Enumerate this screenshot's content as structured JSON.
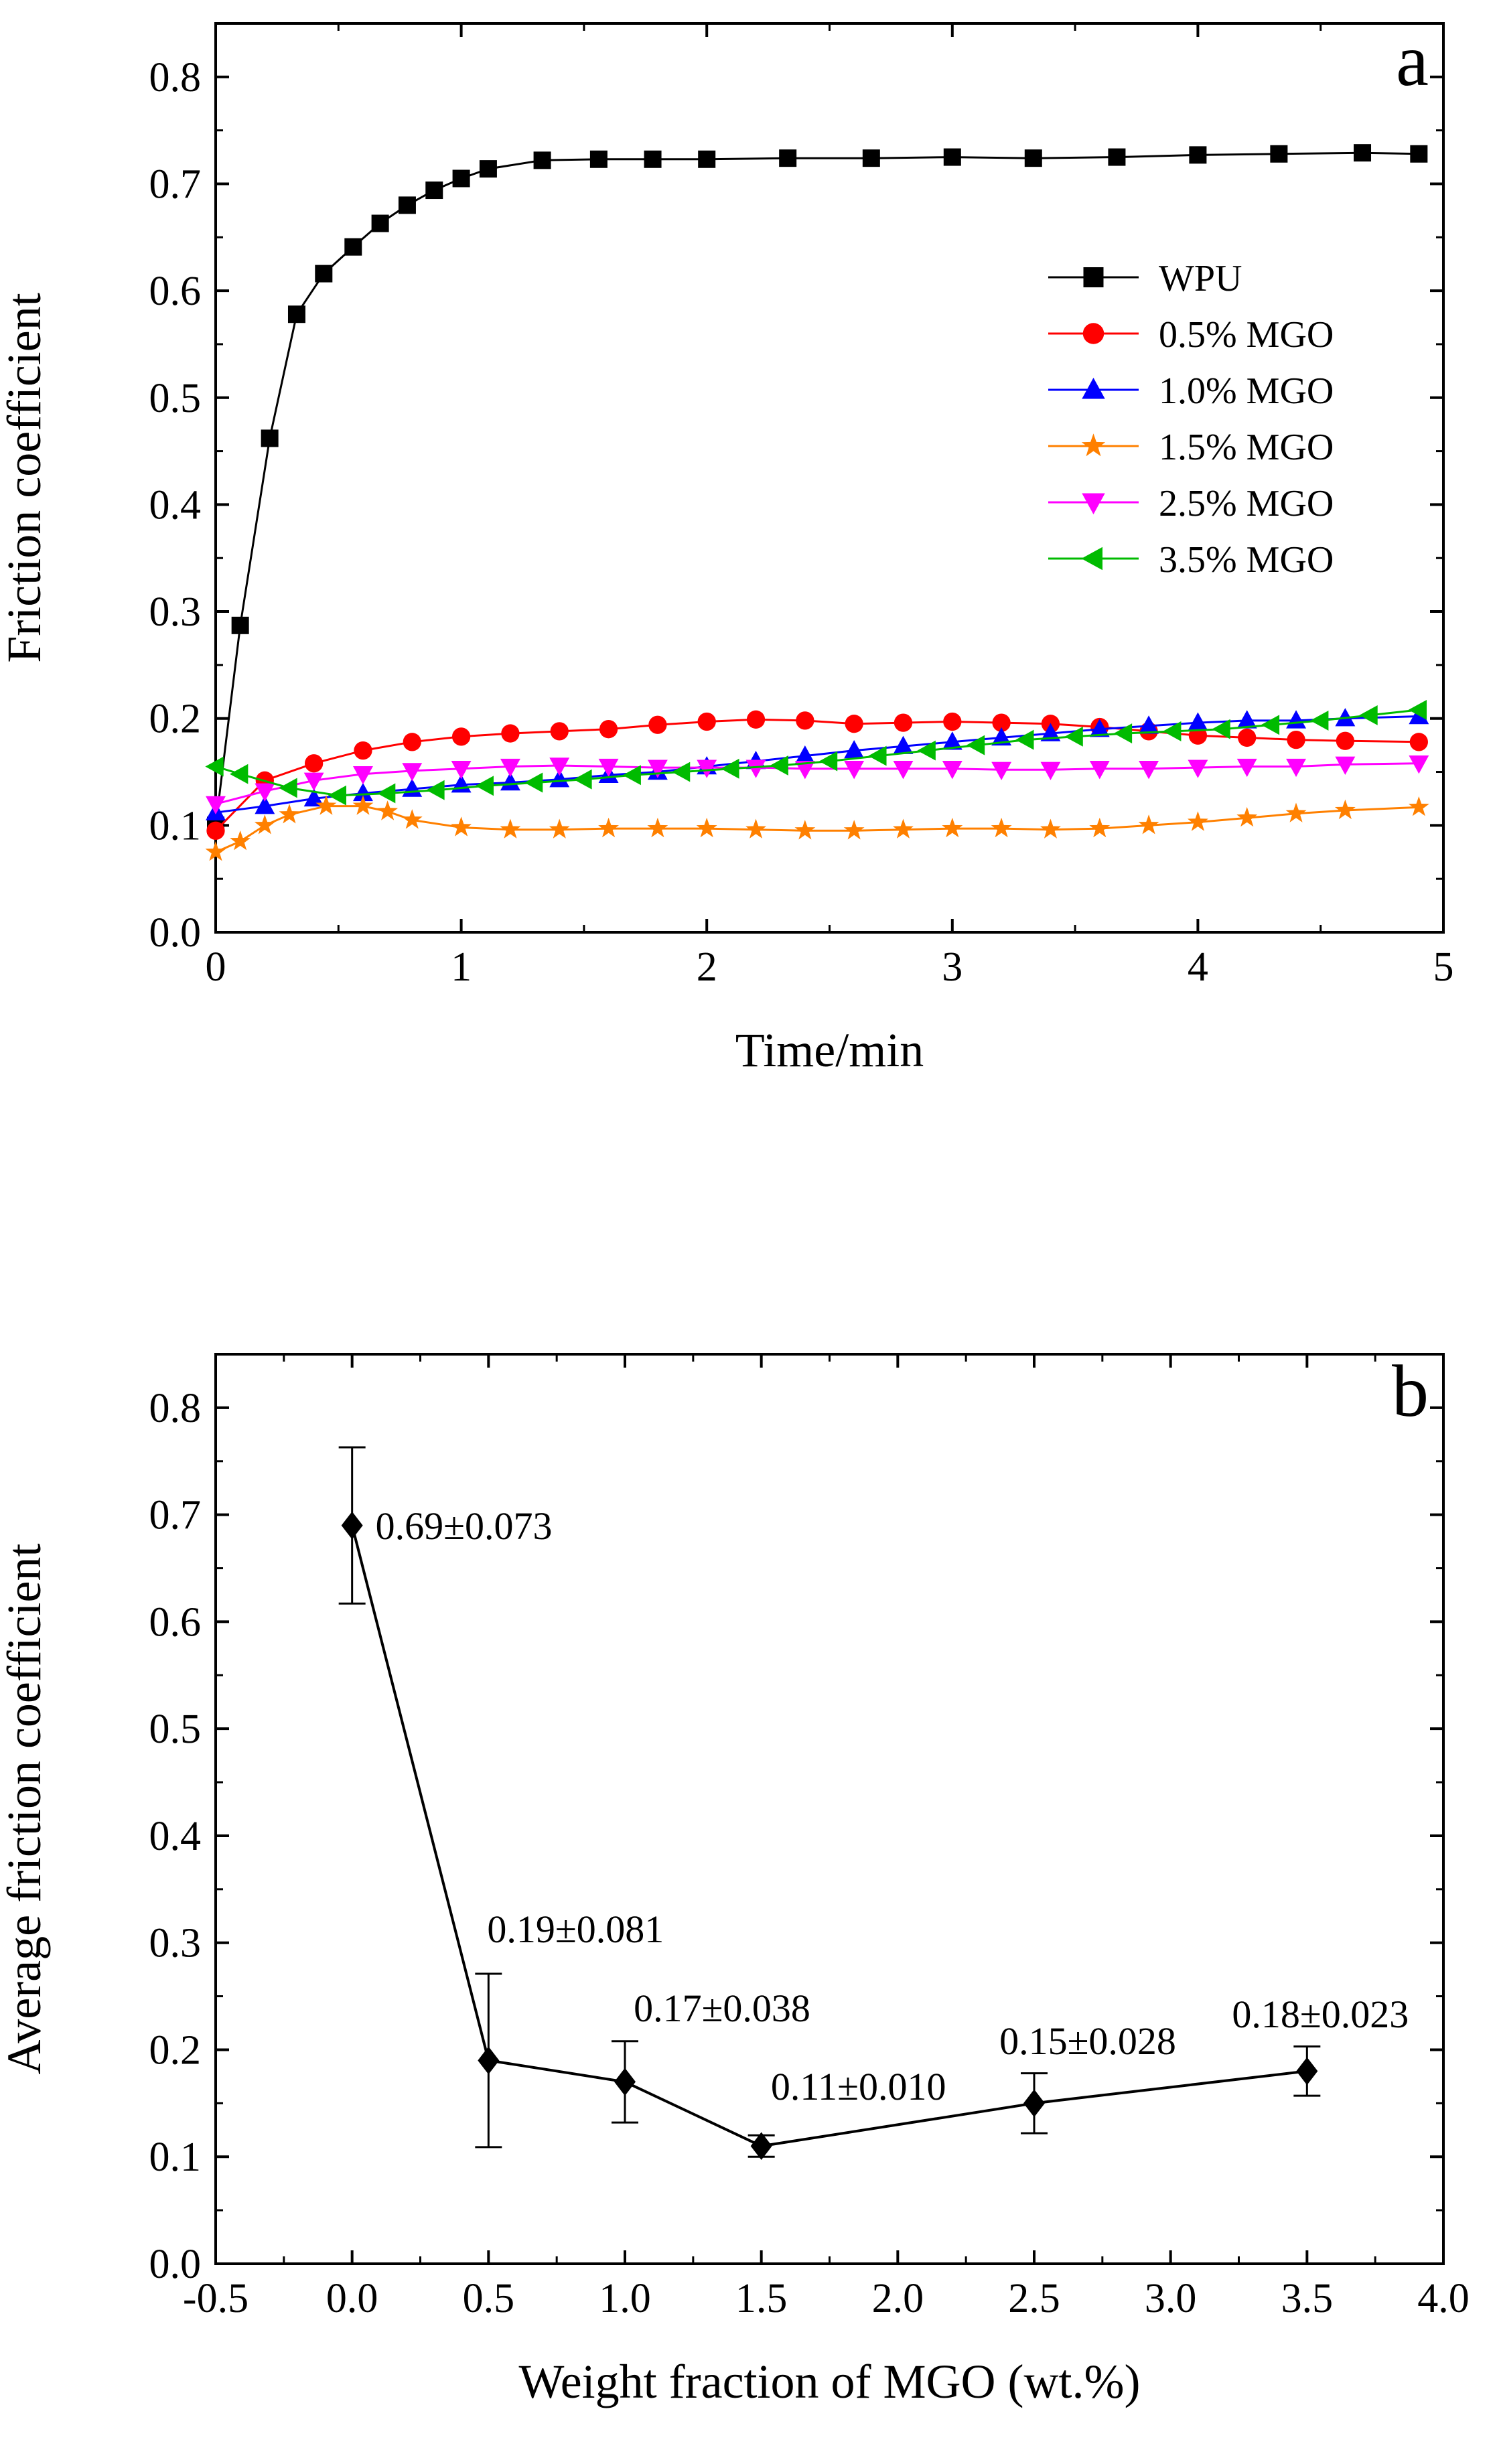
{
  "chart_data": [
    {
      "type": "line",
      "panel_label": "a",
      "xlabel": "Time/min",
      "ylabel": "Friction coefficient",
      "xlim": [
        0,
        5
      ],
      "ylim": [
        0,
        0.85
      ],
      "xticks": [
        "0",
        "1",
        "2",
        "3",
        "4",
        "5"
      ],
      "yticks": [
        "0.0",
        "0.1",
        "0.2",
        "0.3",
        "0.4",
        "0.5",
        "0.6",
        "0.7",
        "0.8"
      ],
      "legend_position": "middle-right",
      "series": [
        {
          "name": "WPU",
          "color": "#000000",
          "marker": "square",
          "x": [
            0,
            0.1,
            0.22,
            0.33,
            0.44,
            0.56,
            0.67,
            0.78,
            0.89,
            1.0,
            1.11,
            1.33,
            1.56,
            1.78,
            2.0,
            2.33,
            2.67,
            3.0,
            3.33,
            3.67,
            4.0,
            4.33,
            4.67,
            4.9
          ],
          "y": [
            0.1,
            0.287,
            0.462,
            0.578,
            0.616,
            0.641,
            0.663,
            0.68,
            0.694,
            0.705,
            0.714,
            0.722,
            0.723,
            0.723,
            0.723,
            0.724,
            0.724,
            0.725,
            0.724,
            0.725,
            0.727,
            0.728,
            0.729,
            0.728
          ]
        },
        {
          "name": "0.5% MGO",
          "color": "#ff0000",
          "marker": "circle",
          "x": [
            0,
            0.2,
            0.4,
            0.6,
            0.8,
            1.0,
            1.2,
            1.4,
            1.6,
            1.8,
            2.0,
            2.2,
            2.4,
            2.6,
            2.8,
            3.0,
            3.2,
            3.4,
            3.6,
            3.8,
            4.0,
            4.2,
            4.4,
            4.6,
            4.9
          ],
          "y": [
            0.095,
            0.142,
            0.158,
            0.17,
            0.178,
            0.183,
            0.186,
            0.188,
            0.19,
            0.194,
            0.197,
            0.199,
            0.198,
            0.195,
            0.196,
            0.197,
            0.196,
            0.195,
            0.192,
            0.188,
            0.184,
            0.182,
            0.18,
            0.179,
            0.178
          ]
        },
        {
          "name": "1.0% MGO",
          "color": "#0000ff",
          "marker": "triangle-up",
          "x": [
            0,
            0.2,
            0.4,
            0.6,
            0.8,
            1.0,
            1.2,
            1.4,
            1.6,
            1.8,
            2.0,
            2.2,
            2.4,
            2.6,
            2.8,
            3.0,
            3.2,
            3.4,
            3.6,
            3.8,
            4.0,
            4.2,
            4.4,
            4.6,
            4.9
          ],
          "y": [
            0.112,
            0.118,
            0.125,
            0.13,
            0.134,
            0.138,
            0.14,
            0.143,
            0.147,
            0.15,
            0.155,
            0.16,
            0.165,
            0.17,
            0.174,
            0.178,
            0.182,
            0.186,
            0.19,
            0.193,
            0.196,
            0.198,
            0.198,
            0.2,
            0.202
          ]
        },
        {
          "name": "1.5% MGO",
          "color": "#ff8000",
          "marker": "star",
          "x": [
            0,
            0.1,
            0.2,
            0.3,
            0.45,
            0.6,
            0.7,
            0.8,
            1.0,
            1.2,
            1.4,
            1.6,
            1.8,
            2.0,
            2.2,
            2.4,
            2.6,
            2.8,
            3.0,
            3.2,
            3.4,
            3.6,
            3.8,
            4.0,
            4.2,
            4.4,
            4.6,
            4.9
          ],
          "y": [
            0.075,
            0.085,
            0.1,
            0.11,
            0.118,
            0.118,
            0.113,
            0.105,
            0.098,
            0.096,
            0.096,
            0.097,
            0.097,
            0.097,
            0.096,
            0.095,
            0.095,
            0.096,
            0.097,
            0.097,
            0.096,
            0.097,
            0.1,
            0.103,
            0.107,
            0.111,
            0.114,
            0.117
          ]
        },
        {
          "name": "2.5% MGO",
          "color": "#ff00ff",
          "marker": "triangle-down",
          "x": [
            0,
            0.2,
            0.4,
            0.6,
            0.8,
            1.0,
            1.2,
            1.4,
            1.6,
            1.8,
            2.0,
            2.2,
            2.4,
            2.6,
            2.8,
            3.0,
            3.2,
            3.4,
            3.6,
            3.8,
            4.0,
            4.2,
            4.4,
            4.6,
            4.9
          ],
          "y": [
            0.12,
            0.132,
            0.142,
            0.148,
            0.151,
            0.153,
            0.155,
            0.156,
            0.155,
            0.154,
            0.154,
            0.154,
            0.153,
            0.153,
            0.153,
            0.153,
            0.152,
            0.152,
            0.153,
            0.153,
            0.154,
            0.155,
            0.155,
            0.157,
            0.158
          ]
        },
        {
          "name": "3.5% MGO",
          "color": "#00bb00",
          "marker": "triangle-left",
          "x": [
            0,
            0.1,
            0.3,
            0.5,
            0.7,
            0.9,
            1.1,
            1.3,
            1.5,
            1.7,
            1.9,
            2.1,
            2.3,
            2.5,
            2.7,
            2.9,
            3.1,
            3.3,
            3.5,
            3.7,
            3.9,
            4.1,
            4.3,
            4.5,
            4.7,
            4.9
          ],
          "y": [
            0.155,
            0.148,
            0.135,
            0.128,
            0.13,
            0.133,
            0.137,
            0.14,
            0.143,
            0.147,
            0.15,
            0.153,
            0.156,
            0.16,
            0.165,
            0.17,
            0.175,
            0.18,
            0.183,
            0.186,
            0.188,
            0.19,
            0.194,
            0.198,
            0.203,
            0.208
          ]
        }
      ]
    },
    {
      "type": "line",
      "panel_label": "b",
      "xlabel": "Weight fraction of MGO (wt.%)",
      "ylabel": "Average friction coefficient",
      "xlim": [
        -0.5,
        4.0
      ],
      "ylim": [
        0,
        0.85
      ],
      "xticks": [
        "-0.5",
        "0.0",
        "0.5",
        "1.0",
        "1.5",
        "2.0",
        "2.5",
        "3.0",
        "3.5",
        "4.0"
      ],
      "yticks": [
        "0.0",
        "0.1",
        "0.2",
        "0.3",
        "0.4",
        "0.5",
        "0.6",
        "0.7",
        "0.8"
      ],
      "series": [
        {
          "name": "Average friction coefficient",
          "color": "#000000",
          "marker": "diamond",
          "x": [
            0.0,
            0.5,
            1.0,
            1.5,
            2.5,
            3.5
          ],
          "y": [
            0.69,
            0.19,
            0.17,
            0.11,
            0.15,
            0.18
          ],
          "error": [
            0.073,
            0.081,
            0.038,
            0.01,
            0.028,
            0.023
          ],
          "labels": [
            "0.69±0.073",
            "0.19±0.081",
            "0.17±0.038",
            "0.11±0.010",
            "0.15±0.028",
            "0.18±0.023"
          ]
        }
      ]
    }
  ]
}
